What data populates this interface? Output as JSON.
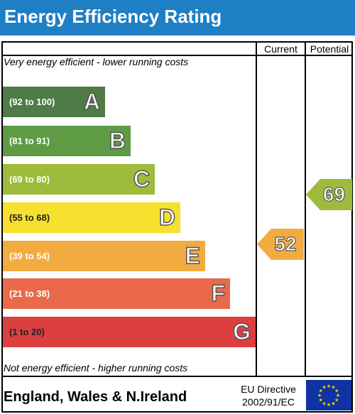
{
  "header": {
    "title": "Energy Efficiency Rating"
  },
  "columns": {
    "current": "Current",
    "potential": "Potential"
  },
  "notes": {
    "top": "Very energy efficient - lower running costs",
    "bottom": "Not energy efficient - higher running costs"
  },
  "bands": [
    {
      "range": "(92 to 100)",
      "letter": "A",
      "color": "#4f7b46"
    },
    {
      "range": "(81 to 91)",
      "letter": "B",
      "color": "#5f9b45"
    },
    {
      "range": "(69 to 80)",
      "letter": "C",
      "color": "#9dbc3b"
    },
    {
      "range": "(55 to 68)",
      "letter": "D",
      "color": "#f6e12f"
    },
    {
      "range": "(39 to 54)",
      "letter": "E",
      "color": "#f1ab41"
    },
    {
      "range": "(21 to 38)",
      "letter": "F",
      "color": "#e9694a"
    },
    {
      "range": "(1 to 20)",
      "letter": "G",
      "color": "#dc3f3f"
    }
  ],
  "ratings": {
    "current": {
      "value": "52",
      "color": "#f1ab41"
    },
    "potential": {
      "value": "69",
      "color": "#9dbc3b"
    }
  },
  "footer": {
    "region": "England, Wales & N.Ireland",
    "directive_line1": "EU Directive",
    "directive_line2": "2002/91/EC"
  },
  "colors": {
    "header_bg": "#1f7fc4",
    "flag_bg": "#1033a3",
    "flag_star": "#f5d400"
  }
}
